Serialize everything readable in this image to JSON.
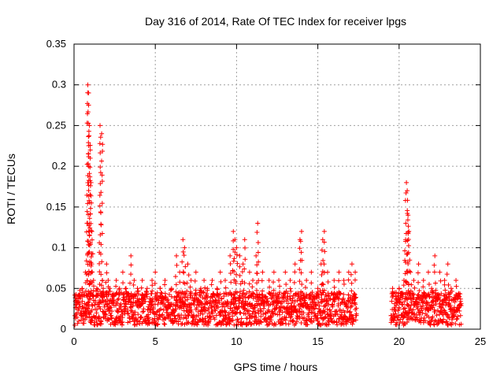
{
  "chart_data": {
    "type": "scatter",
    "title": "Day 316 of 2014, Rate Of TEC Index for receiver lpgs",
    "xlabel": "GPS time / hours",
    "ylabel": "ROTI / TECUs",
    "xlim": [
      0,
      25
    ],
    "ylim": [
      0,
      0.35
    ],
    "xticks": [
      0,
      5,
      10,
      15,
      20,
      25
    ],
    "xtick_labels": [
      "0",
      "5",
      "10",
      "15",
      "20",
      "25"
    ],
    "yticks": [
      0,
      0.05,
      0.1,
      0.15,
      0.2,
      0.25,
      0.3,
      0.35
    ],
    "ytick_labels": [
      "0",
      "0.05",
      "0.1",
      "0.15",
      "0.2",
      "0.25",
      "0.3",
      "0.35"
    ],
    "grid": true,
    "marker": "+",
    "color": "#ff0000",
    "data_gaps_hours": [
      [
        17.4,
        19.5
      ]
    ],
    "series": [
      {
        "name": "ROTI",
        "x": [
          0.1,
          0.3,
          0.5,
          0.7,
          0.8,
          0.85,
          0.9,
          0.95,
          1.0,
          1.05,
          1.1,
          1.2,
          1.4,
          1.6,
          1.7,
          1.75,
          1.8,
          2.0,
          2.1,
          2.2,
          2.4,
          2.6,
          2.8,
          3.0,
          3.2,
          3.5,
          3.7,
          3.9,
          4.2,
          4.5,
          4.8,
          5.0,
          5.3,
          5.6,
          6.0,
          6.3,
          6.5,
          6.7,
          6.8,
          7.0,
          7.2,
          7.5,
          7.8,
          8.0,
          8.2,
          8.5,
          8.8,
          9.0,
          9.3,
          9.6,
          9.8,
          9.9,
          10.0,
          10.2,
          10.4,
          10.5,
          10.8,
          11.0,
          11.2,
          11.3,
          11.6,
          12.0,
          12.3,
          12.6,
          13.0,
          13.3,
          13.6,
          13.9,
          14.0,
          14.3,
          14.6,
          15.0,
          15.2,
          15.3,
          15.4,
          15.6,
          16.0,
          16.3,
          16.6,
          16.9,
          17.1,
          17.3,
          19.6,
          19.8,
          20.0,
          20.2,
          20.3,
          20.4,
          20.45,
          20.5,
          20.55,
          20.6,
          20.7,
          20.9,
          21.2,
          21.5,
          21.8,
          22.0,
          22.2,
          22.5,
          22.8,
          23.0,
          23.2,
          23.5,
          23.7
        ],
        "y": [
          0.03,
          0.04,
          0.05,
          0.07,
          0.13,
          0.3,
          0.29,
          0.25,
          0.22,
          0.18,
          0.12,
          0.06,
          0.05,
          0.25,
          0.24,
          0.06,
          0.05,
          0.08,
          0.06,
          0.05,
          0.04,
          0.06,
          0.05,
          0.07,
          0.05,
          0.09,
          0.06,
          0.05,
          0.06,
          0.05,
          0.06,
          0.07,
          0.05,
          0.06,
          0.05,
          0.09,
          0.07,
          0.11,
          0.1,
          0.08,
          0.06,
          0.07,
          0.05,
          0.06,
          0.05,
          0.06,
          0.05,
          0.07,
          0.06,
          0.09,
          0.12,
          0.11,
          0.1,
          0.09,
          0.08,
          0.11,
          0.07,
          0.06,
          0.09,
          0.13,
          0.07,
          0.06,
          0.07,
          0.06,
          0.07,
          0.06,
          0.08,
          0.11,
          0.12,
          0.06,
          0.07,
          0.05,
          0.08,
          0.11,
          0.12,
          0.07,
          0.06,
          0.07,
          0.06,
          0.07,
          0.08,
          0.07,
          0.05,
          0.04,
          0.05,
          0.04,
          0.06,
          0.11,
          0.18,
          0.17,
          0.14,
          0.12,
          0.07,
          0.06,
          0.08,
          0.06,
          0.07,
          0.05,
          0.09,
          0.07,
          0.06,
          0.08,
          0.05,
          0.06,
          0.04
        ],
        "baseline_band": [
          0.005,
          0.045
        ]
      }
    ]
  }
}
